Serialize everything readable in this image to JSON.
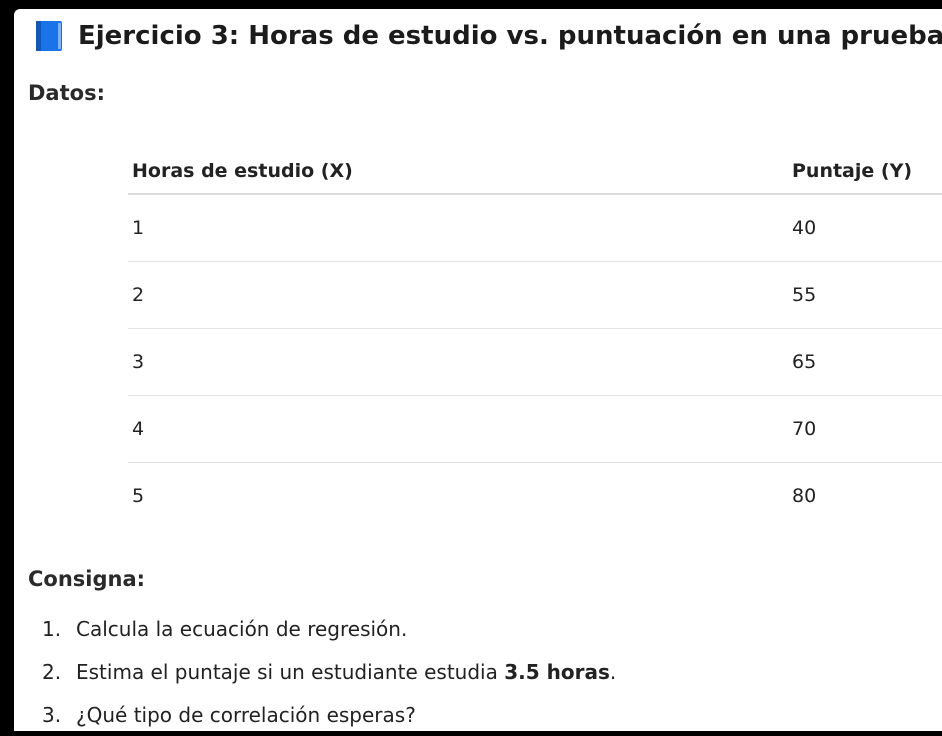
{
  "heading": {
    "icon": "blue-book-icon",
    "title": "Ejercicio 3: Horas de estudio vs. puntuación en una prueba"
  },
  "datos_label": "Datos:",
  "table": {
    "headers": [
      "Horas de estudio (X)",
      "Puntaje (Y)"
    ],
    "rows": [
      [
        "1",
        "40"
      ],
      [
        "2",
        "55"
      ],
      [
        "3",
        "65"
      ],
      [
        "4",
        "70"
      ],
      [
        "5",
        "80"
      ]
    ]
  },
  "consigna_label": "Consigna:",
  "tasks": [
    {
      "number": "1.",
      "text": "Calcula la ecuación de regresión.",
      "bold": ""
    },
    {
      "number": "2.",
      "text": "Estima el puntaje si un estudiante estudia ",
      "bold": "3.5 horas",
      "after": "."
    },
    {
      "number": "3.",
      "text": "¿Qué tipo de correlación esperas?",
      "bold": ""
    }
  ],
  "colors": {
    "icon_blue": "#1a73e8",
    "background": "#ffffff",
    "frame": "#000000"
  }
}
